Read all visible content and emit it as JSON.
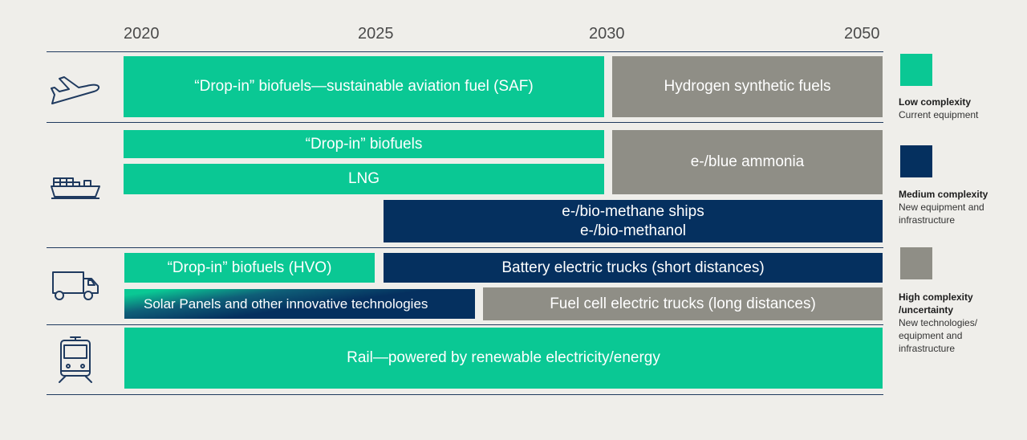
{
  "years": [
    "2020",
    "2025",
    "2030",
    "2050"
  ],
  "aviation": {
    "saf": "“Drop-in” biofuels—sustainable aviation fuel (SAF)",
    "hydrogen": "Hydrogen synthetic fuels"
  },
  "shipping": {
    "biofuels": "“Drop-in” biofuels",
    "lng": "LNG",
    "ammonia": "e-/blue ammonia",
    "methane": "e-/bio-methane ships",
    "methanol": "e-/bio-methanol"
  },
  "road": {
    "hvo": "“Drop-in” biofuels (HVO)",
    "battery": "Battery electric trucks (short distances)",
    "solar": "Solar Panels and other innovative technologies",
    "fuelcell": "Fuel cell electric trucks (long distances)"
  },
  "rail": {
    "renewable": "Rail—powered by renewable electricity/energy"
  },
  "legend": {
    "low": {
      "title": "Low complexity",
      "desc": "Current equipment",
      "color": "#0ac894"
    },
    "medium": {
      "title": "Medium complexity",
      "desc": "New equipment and infrastructure",
      "color": "#05305f"
    },
    "high": {
      "title_line1": "High complexity",
      "title_line2": "/uncertainty",
      "desc": "New technologies/ equipment and infrastructure",
      "color": "#8f8e86"
    }
  },
  "icons": [
    "airplane-icon",
    "cargo-ship-icon",
    "truck-icon",
    "train-icon"
  ]
}
